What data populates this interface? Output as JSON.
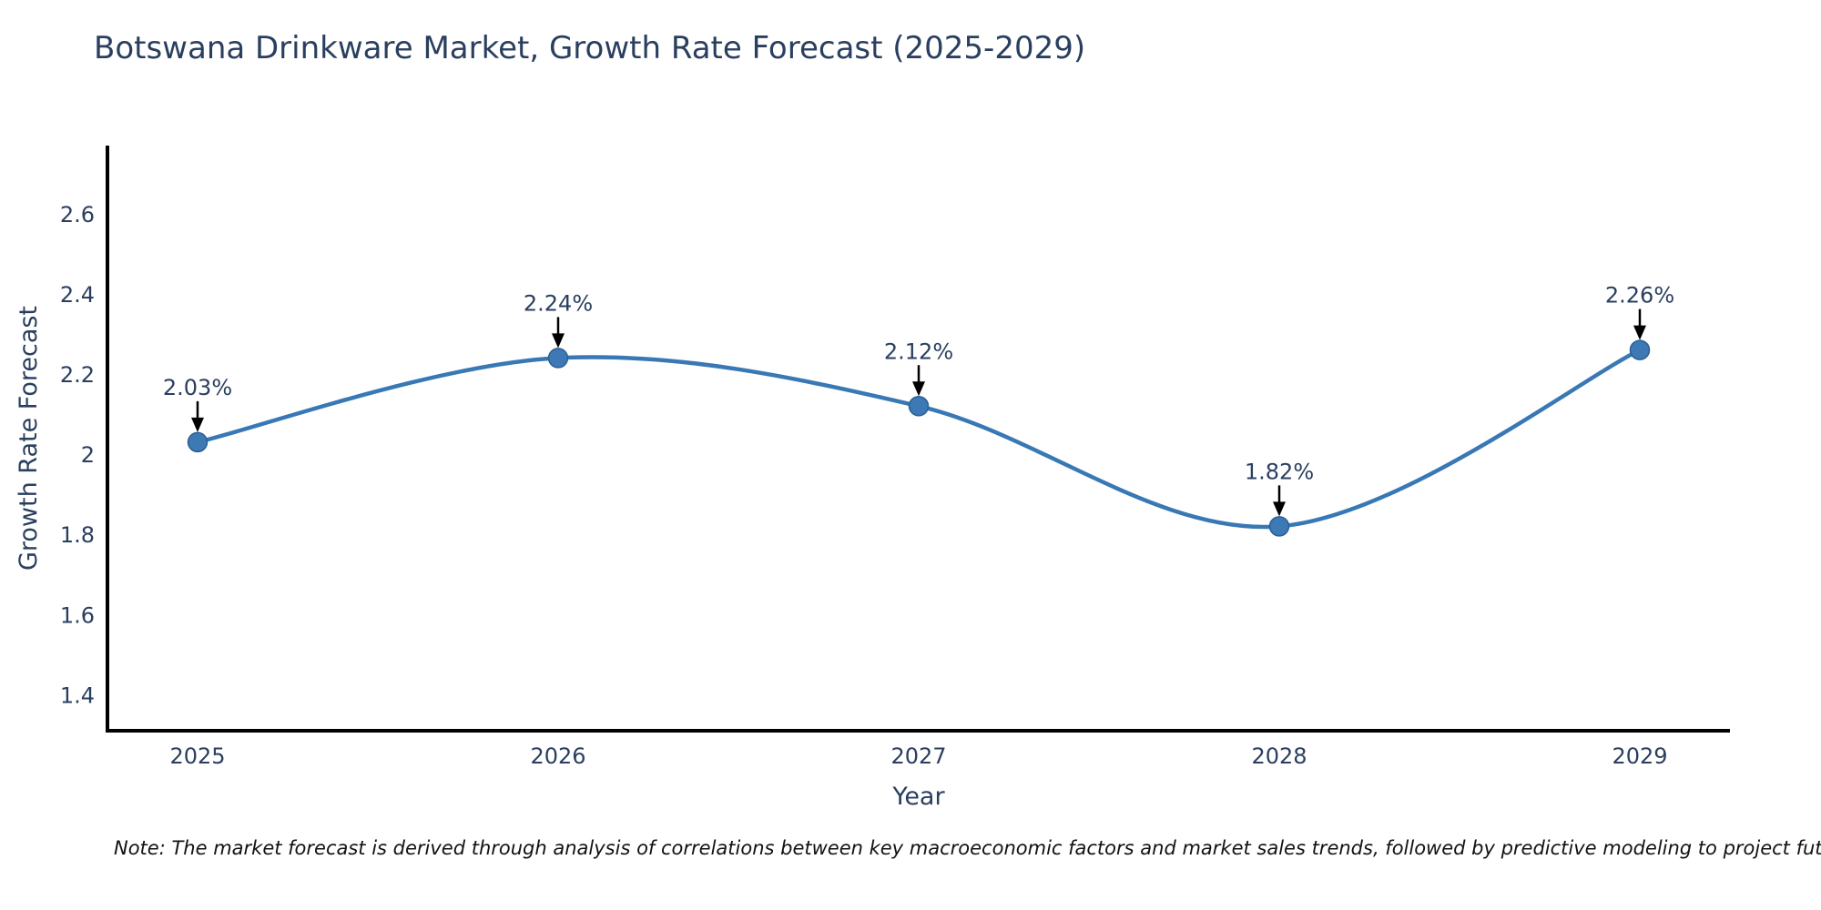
{
  "title": "Botswana Drinkware Market, Growth Rate Forecast (2025-2029)",
  "note": "Note: The market forecast is derived through analysis of correlations between key macroeconomic factors and market sales trends, followed by predictive modeling to project future sales",
  "colors": {
    "line": "#3878b4",
    "marker_fill": "#3c79b5",
    "marker_edge": "#2e5f93",
    "axis_line": "#000000",
    "text": "#2a3f5f",
    "annotation_arrow": "#000000",
    "background": "#ffffff"
  },
  "chart_data": {
    "type": "line",
    "title": "Botswana Drinkware Market, Growth Rate Forecast (2025-2029)",
    "xlabel": "Year",
    "ylabel": "Growth Rate Forecast",
    "x": [
      2025,
      2026,
      2027,
      2028,
      2029
    ],
    "values": [
      2.03,
      2.24,
      2.12,
      1.82,
      2.26
    ],
    "annotations": [
      "2.03%",
      "2.24%",
      "2.12%",
      "1.82%",
      "2.26%"
    ],
    "xtick_labels": [
      "2025",
      "2026",
      "2027",
      "2028",
      "2029"
    ],
    "ytick_values": [
      1.4,
      1.6,
      1.8,
      2,
      2.2,
      2.4,
      2.6
    ],
    "ytick_labels": [
      "1.4",
      "1.6",
      "1.8",
      "2",
      "2.2",
      "2.4",
      "2.6"
    ],
    "xlim": [
      2024.75,
      2029.25
    ],
    "ylim": [
      1.31,
      2.77
    ],
    "grid": false,
    "legend": "none",
    "line_shape": "spline"
  }
}
